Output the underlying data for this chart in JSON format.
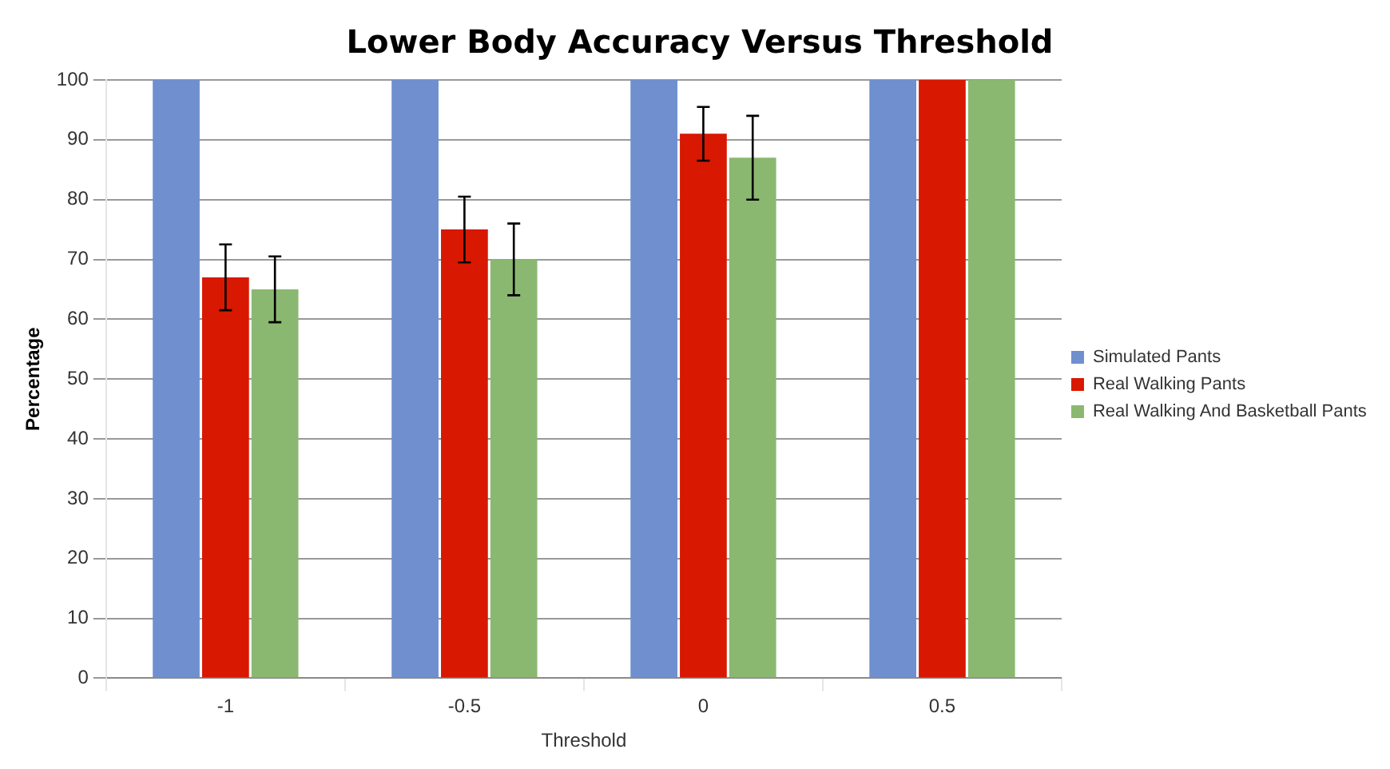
{
  "chart_data": {
    "type": "bar",
    "title": "Lower Body Accuracy Versus Threshold",
    "xlabel": "Threshold",
    "ylabel": "Percentage",
    "categories": [
      "-1",
      "-0.5",
      "0",
      "0.5"
    ],
    "series": [
      {
        "name": "Simulated Pants",
        "color": "#6f8fcf",
        "values": [
          100,
          100,
          100,
          100
        ]
      },
      {
        "name": "Real Walking Pants",
        "color": "#d81800",
        "values": [
          67,
          75,
          91,
          100
        ],
        "errors": [
          5.5,
          5.5,
          4.5,
          null
        ]
      },
      {
        "name": "Real Walking And Basketball Pants",
        "color": "#8ab870",
        "values": [
          65,
          70,
          87,
          100
        ],
        "errors": [
          5.5,
          6,
          7,
          null
        ]
      }
    ],
    "ylim": [
      0,
      100
    ],
    "yticks": [
      0,
      10,
      20,
      30,
      40,
      50,
      60,
      70,
      80,
      90,
      100
    ],
    "grid": "y",
    "legend": "right"
  }
}
